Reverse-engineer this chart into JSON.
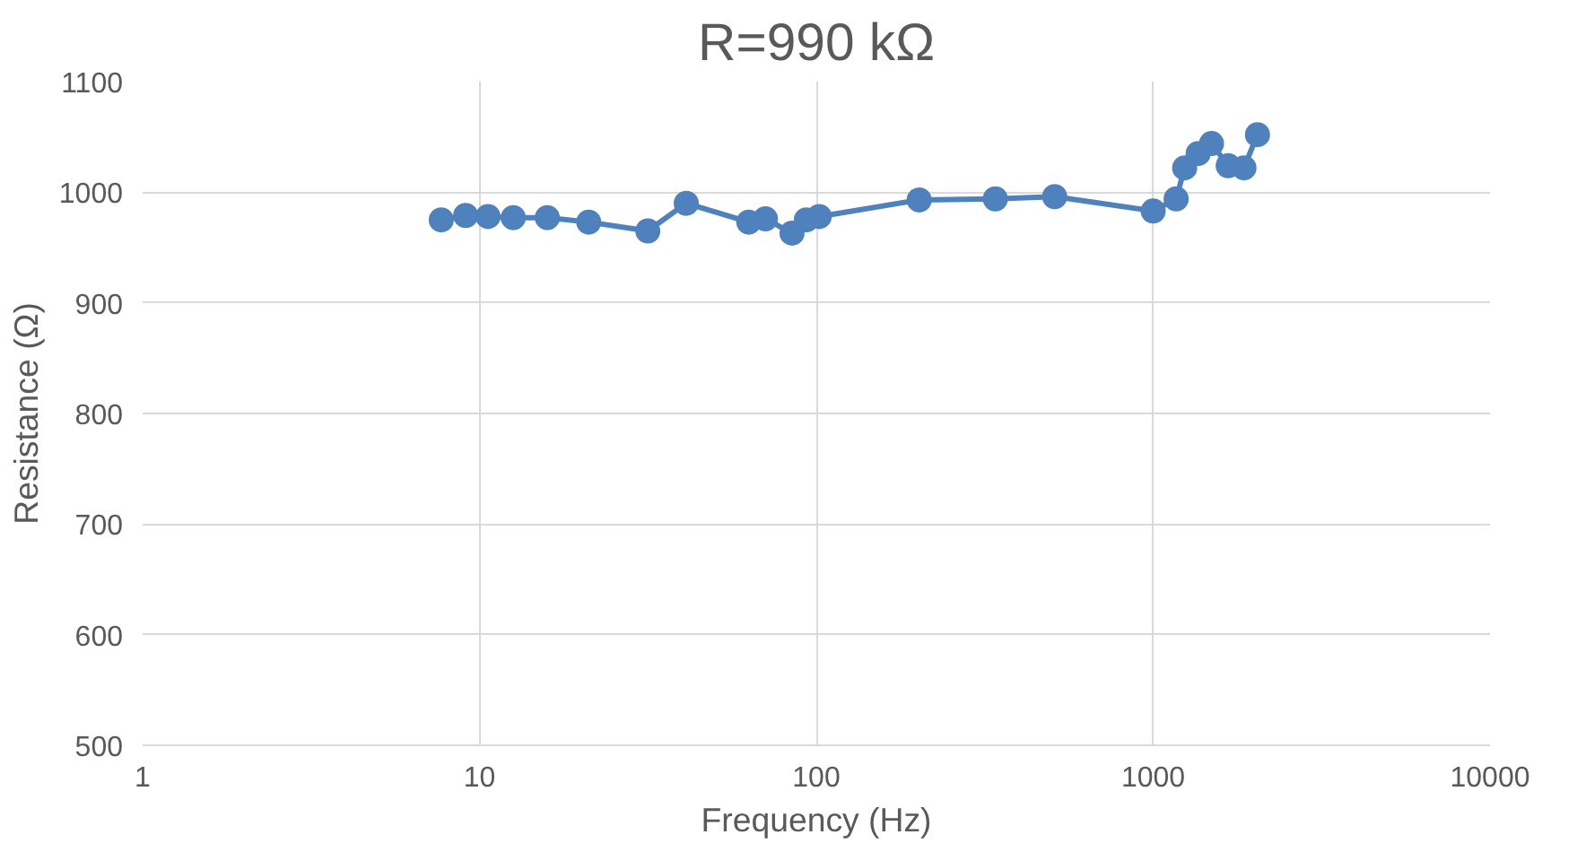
{
  "chart_data": {
    "type": "line",
    "title": "R=990 kΩ",
    "xlabel": "Frequency (Hz)",
    "ylabel": "Resistance (Ω)",
    "x": [
      7.7,
      9.1,
      10.6,
      12.6,
      15.9,
      21.1,
      31.6,
      41.1,
      63,
      70.6,
      84.7,
      93.4,
      102,
      202,
      340,
      510,
      1000,
      1170,
      1240,
      1360,
      1490,
      1670,
      1860,
      2040
    ],
    "series": [
      {
        "color": "#4f81bd",
        "values": [
          975,
          979,
          978,
          977,
          977,
          973,
          965,
          990,
          973,
          976,
          963,
          975,
          978,
          993,
          994,
          996,
          983,
          994,
          1022,
          1035,
          1044,
          1024,
          1022,
          1052
        ]
      }
    ],
    "log": "x",
    "xlim": [
      1,
      10000
    ],
    "xticks": [
      1,
      10,
      100,
      1000,
      10000
    ],
    "ylim": [
      500,
      1100
    ],
    "yticks": [
      500,
      600,
      700,
      800,
      900,
      1000,
      1100
    ],
    "grid": true,
    "marker": "circle",
    "line_style": "solid"
  }
}
